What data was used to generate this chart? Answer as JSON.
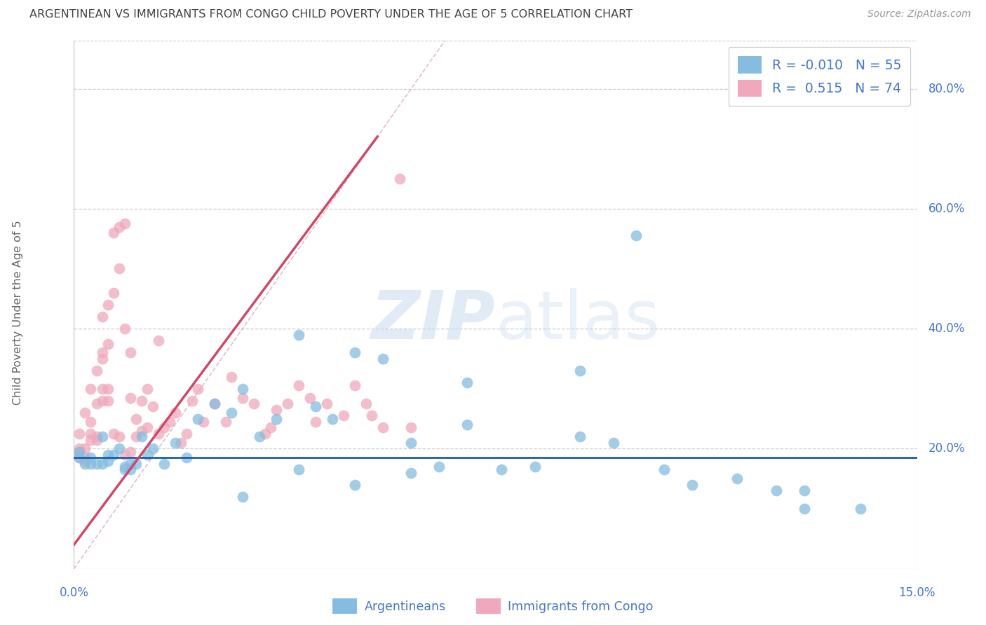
{
  "title": "ARGENTINEAN VS IMMIGRANTS FROM CONGO CHILD POVERTY UNDER THE AGE OF 5 CORRELATION CHART",
  "source": "Source: ZipAtlas.com",
  "ylabel": "Child Poverty Under the Age of 5",
  "xlim": [
    0.0,
    0.15
  ],
  "ylim": [
    -0.02,
    0.88
  ],
  "plot_ylim": [
    0.0,
    0.88
  ],
  "watermark_zip": "ZIP",
  "watermark_atlas": "atlas",
  "legend_r_blue": "-0.010",
  "legend_n_blue": "55",
  "legend_r_pink": "0.515",
  "legend_n_pink": "74",
  "label_blue": "Argentineans",
  "label_pink": "Immigrants from Congo",
  "blue_color": "#85bce0",
  "pink_color": "#f0a8bc",
  "blue_line_color": "#1a5fa8",
  "pink_line_color": "#d04868",
  "title_color": "#444444",
  "source_color": "#999999",
  "axis_color": "#4477cc",
  "grid_color": "#cccccc",
  "ytick_vals": [
    0.2,
    0.4,
    0.6,
    0.8
  ],
  "ytick_labels": [
    "20.0%",
    "40.0%",
    "60.0%",
    "80.0%"
  ],
  "blue_x": [
    0.001,
    0.001,
    0.002,
    0.003,
    0.003,
    0.004,
    0.005,
    0.005,
    0.006,
    0.006,
    0.007,
    0.008,
    0.009,
    0.009,
    0.01,
    0.01,
    0.011,
    0.012,
    0.013,
    0.014,
    0.016,
    0.018,
    0.02,
    0.022,
    0.025,
    0.028,
    0.03,
    0.033,
    0.036,
    0.04,
    0.043,
    0.046,
    0.05,
    0.055,
    0.06,
    0.065,
    0.07,
    0.076,
    0.082,
    0.09,
    0.096,
    0.1,
    0.105,
    0.11,
    0.118,
    0.125,
    0.13,
    0.14,
    0.03,
    0.04,
    0.05,
    0.06,
    0.13,
    0.09,
    0.07
  ],
  "blue_y": [
    0.185,
    0.195,
    0.175,
    0.185,
    0.175,
    0.175,
    0.22,
    0.175,
    0.18,
    0.19,
    0.19,
    0.2,
    0.17,
    0.165,
    0.165,
    0.175,
    0.175,
    0.22,
    0.19,
    0.2,
    0.175,
    0.21,
    0.185,
    0.25,
    0.275,
    0.26,
    0.3,
    0.22,
    0.25,
    0.39,
    0.27,
    0.25,
    0.36,
    0.35,
    0.21,
    0.17,
    0.24,
    0.165,
    0.17,
    0.33,
    0.21,
    0.555,
    0.165,
    0.14,
    0.15,
    0.13,
    0.13,
    0.1,
    0.12,
    0.165,
    0.14,
    0.16,
    0.1,
    0.22,
    0.31
  ],
  "pink_x": [
    0.001,
    0.001,
    0.001,
    0.001,
    0.002,
    0.002,
    0.002,
    0.002,
    0.003,
    0.003,
    0.003,
    0.003,
    0.004,
    0.004,
    0.004,
    0.004,
    0.005,
    0.005,
    0.005,
    0.005,
    0.005,
    0.006,
    0.006,
    0.006,
    0.006,
    0.007,
    0.007,
    0.007,
    0.008,
    0.008,
    0.008,
    0.009,
    0.009,
    0.009,
    0.01,
    0.01,
    0.01,
    0.011,
    0.011,
    0.012,
    0.012,
    0.013,
    0.013,
    0.014,
    0.015,
    0.015,
    0.016,
    0.017,
    0.018,
    0.019,
    0.02,
    0.021,
    0.022,
    0.023,
    0.025,
    0.027,
    0.028,
    0.03,
    0.032,
    0.034,
    0.035,
    0.036,
    0.038,
    0.04,
    0.042,
    0.043,
    0.045,
    0.048,
    0.05,
    0.052,
    0.053,
    0.055,
    0.058,
    0.06
  ],
  "pink_y": [
    0.185,
    0.195,
    0.225,
    0.2,
    0.18,
    0.2,
    0.26,
    0.185,
    0.245,
    0.3,
    0.215,
    0.225,
    0.22,
    0.275,
    0.33,
    0.215,
    0.36,
    0.42,
    0.3,
    0.35,
    0.28,
    0.375,
    0.44,
    0.28,
    0.3,
    0.46,
    0.56,
    0.225,
    0.5,
    0.57,
    0.22,
    0.575,
    0.4,
    0.19,
    0.36,
    0.285,
    0.195,
    0.25,
    0.22,
    0.28,
    0.23,
    0.235,
    0.3,
    0.27,
    0.38,
    0.225,
    0.235,
    0.245,
    0.26,
    0.21,
    0.225,
    0.28,
    0.3,
    0.245,
    0.275,
    0.245,
    0.32,
    0.285,
    0.275,
    0.225,
    0.235,
    0.265,
    0.275,
    0.305,
    0.285,
    0.245,
    0.275,
    0.255,
    0.305,
    0.275,
    0.255,
    0.235,
    0.65,
    0.235
  ],
  "ref_line_x": [
    0.0,
    0.066
  ],
  "ref_line_y": [
    0.0,
    0.88
  ],
  "pink_line_x": [
    0.0,
    0.054
  ],
  "pink_line_y_start": 0.05,
  "pink_line_slope": 12.0,
  "blue_line_y": 0.185
}
